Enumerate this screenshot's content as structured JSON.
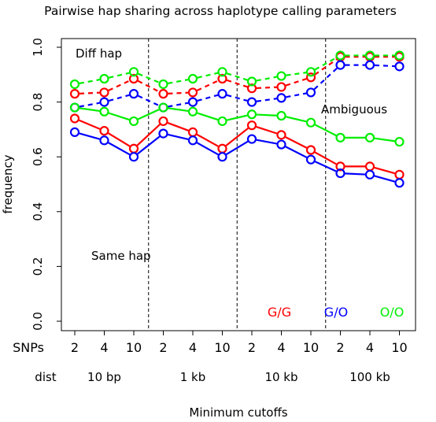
{
  "chart_data": {
    "type": "line",
    "title": "Pairwise hap sharing across haplotype calling parameters",
    "xlabel": "Minimum cutoffs",
    "ylabel": "frequency",
    "ylim": [
      0.0,
      1.0
    ],
    "yticks": [
      "0.0",
      "0.2",
      "0.4",
      "0.6",
      "0.8",
      "1.0"
    ],
    "row_labels": {
      "snps": "SNPs",
      "dist": "dist"
    },
    "snp_labels": [
      "2",
      "4",
      "10",
      "2",
      "4",
      "10",
      "2",
      "4",
      "10",
      "2",
      "4",
      "10"
    ],
    "dist_labels": [
      "10 bp",
      "1 kb",
      "10 kb",
      "100 kb"
    ],
    "grid": false,
    "region_labels": {
      "diff": "Diff hap",
      "ambiguous": "Ambiguous",
      "same": "Same hap"
    },
    "legend": [
      {
        "label": "G/G",
        "color": "#ff0000"
      },
      {
        "label": "G/O",
        "color": "#0000ff"
      },
      {
        "label": "O/O",
        "color": "#00ee00"
      }
    ],
    "series": [
      {
        "group": "Diff hap",
        "pair": "G/G",
        "color": "#ff0000",
        "style": "dashed",
        "values": [
          0.83,
          0.835,
          0.885,
          0.83,
          0.835,
          0.885,
          0.85,
          0.855,
          0.89,
          0.965,
          0.965,
          0.965
        ]
      },
      {
        "group": "Diff hap",
        "pair": "G/O",
        "color": "#0000ff",
        "style": "dashed",
        "values": [
          0.78,
          0.8,
          0.83,
          0.78,
          0.8,
          0.83,
          0.8,
          0.815,
          0.835,
          0.935,
          0.935,
          0.93
        ]
      },
      {
        "group": "Diff hap",
        "pair": "O/O",
        "color": "#00ee00",
        "style": "dashed",
        "values": [
          0.865,
          0.885,
          0.91,
          0.865,
          0.885,
          0.91,
          0.875,
          0.895,
          0.91,
          0.97,
          0.97,
          0.97
        ]
      },
      {
        "group": "Ambiguous",
        "pair": "O/O",
        "color": "#00ee00",
        "style": "solid",
        "values": [
          0.78,
          0.765,
          0.73,
          0.78,
          0.765,
          0.73,
          0.755,
          0.75,
          0.725,
          0.67,
          0.67,
          0.655
        ]
      },
      {
        "group": "Same hap",
        "pair": "G/G",
        "color": "#ff0000",
        "style": "solid",
        "values": [
          0.74,
          0.695,
          0.63,
          0.73,
          0.69,
          0.63,
          0.715,
          0.68,
          0.625,
          0.565,
          0.565,
          0.535
        ]
      },
      {
        "group": "Same hap",
        "pair": "G/O",
        "color": "#0000ff",
        "style": "solid",
        "values": [
          0.69,
          0.66,
          0.6,
          0.685,
          0.66,
          0.6,
          0.665,
          0.645,
          0.59,
          0.54,
          0.535,
          0.505
        ]
      }
    ]
  }
}
